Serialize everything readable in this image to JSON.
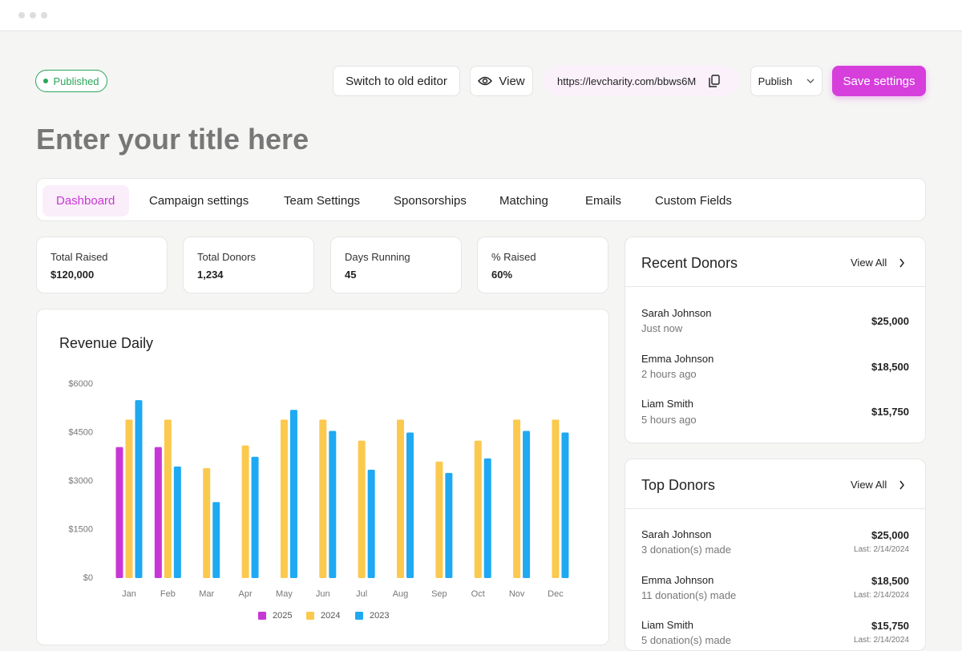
{
  "header": {
    "status": "Published",
    "switch_editor": "Switch to old editor",
    "view": "View",
    "url": "https://levcharity.com/bbws6M",
    "publish": "Publish",
    "save": "Save settings"
  },
  "title_placeholder": "Enter your title here",
  "tabs": [
    "Dashboard",
    "Campaign settings",
    "Team Settings",
    "Sponsorships",
    "Matching",
    "Emails",
    "Custom Fields"
  ],
  "stats": [
    {
      "label": "Total Raised",
      "value": "$120,000"
    },
    {
      "label": "Total Donors",
      "value": "1,234"
    },
    {
      "label": "Days Running",
      "value": "45"
    },
    {
      "label": "% Raised",
      "value": "60%"
    }
  ],
  "chart_data": {
    "type": "bar",
    "title": "Revenue Daily",
    "categories": [
      "Jan",
      "Feb",
      "Mar",
      "Apr",
      "May",
      "Jun",
      "Jul",
      "Aug",
      "Sep",
      "Oct",
      "Nov",
      "Dec"
    ],
    "series": [
      {
        "name": "2025",
        "color": "#c837d6",
        "values": [
          4050,
          4050,
          null,
          null,
          null,
          null,
          null,
          null,
          null,
          null,
          null,
          null
        ]
      },
      {
        "name": "2024",
        "color": "#fcc94f",
        "values": [
          4900,
          4900,
          3400,
          4100,
          4900,
          4900,
          4250,
          4900,
          3600,
          4250,
          4900,
          4900
        ]
      },
      {
        "name": "2023",
        "color": "#1fa9f2",
        "values": [
          5500,
          3450,
          2350,
          3750,
          5200,
          4550,
          3350,
          4500,
          3250,
          3700,
          4550,
          4500
        ]
      }
    ],
    "ylim": [
      0,
      6000
    ],
    "yticks": [
      {
        "value": 0,
        "label": "$0"
      },
      {
        "value": 1500,
        "label": "$1500"
      },
      {
        "value": 3000,
        "label": "$3000"
      },
      {
        "value": 4500,
        "label": "$4500"
      },
      {
        "value": 6000,
        "label": "$6000"
      }
    ],
    "grid": false,
    "legend": "bottom"
  },
  "recent_donors": {
    "title": "Recent Donors",
    "view_all": "View All",
    "donors": [
      {
        "name": "Sarah Johnson",
        "time": "Just now",
        "amount": "$25,000"
      },
      {
        "name": "Emma Johnson",
        "time": "2 hours ago",
        "amount": "$18,500"
      },
      {
        "name": "Liam Smith",
        "time": "5 hours ago",
        "amount": "$15,750"
      }
    ]
  },
  "top_donors": {
    "title": "Top Donors",
    "view_all": "View All",
    "donors": [
      {
        "name": "Sarah Johnson",
        "count": "3 donation(s) made",
        "amount": "$25,000",
        "last": "Last: 2/14/2024"
      },
      {
        "name": "Emma Johnson",
        "count": "11 donation(s) made",
        "amount": "$18,500",
        "last": "Last: 2/14/2024"
      },
      {
        "name": "Liam Smith",
        "count": "5 donation(s) made",
        "amount": "$15,750",
        "last": "Last: 2/14/2024"
      }
    ]
  }
}
